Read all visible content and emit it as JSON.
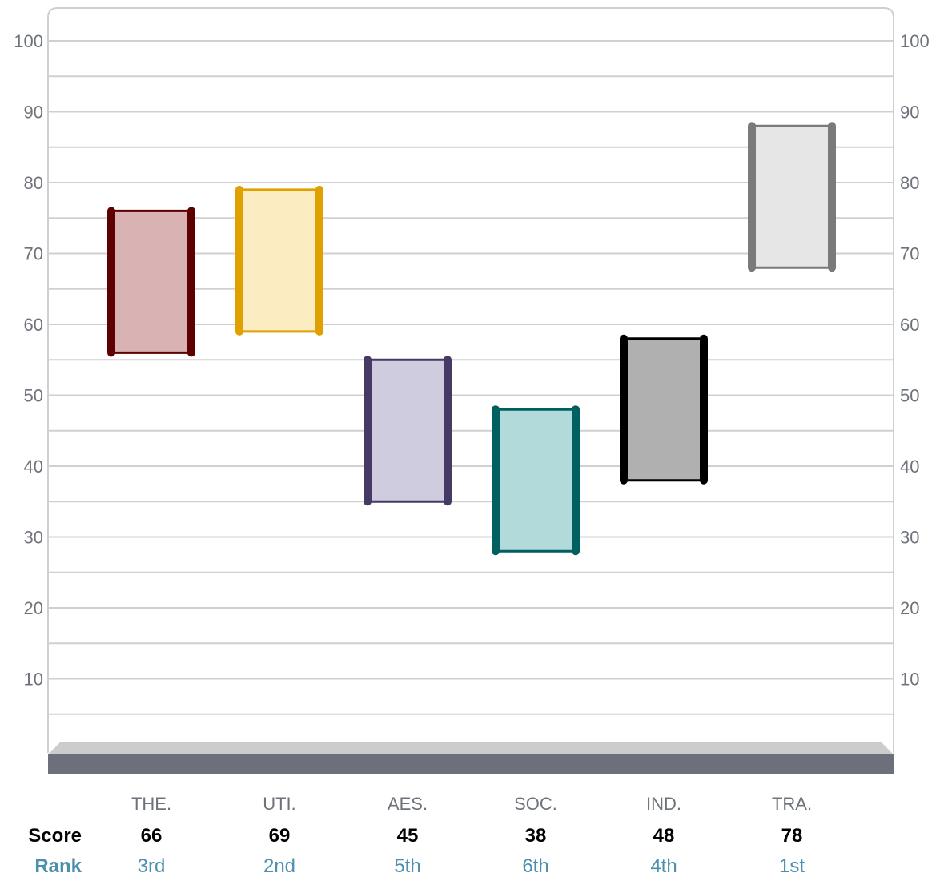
{
  "chart_data": {
    "type": "floating-bar",
    "title": "",
    "ylim": [
      0,
      100
    ],
    "y_ticks": [
      10,
      20,
      30,
      40,
      50,
      60,
      70,
      80,
      90,
      100
    ],
    "grid": true,
    "categories": [
      "THE.",
      "UTI.",
      "AES.",
      "SOC.",
      "IND.",
      "TRA."
    ],
    "ranges": [
      {
        "low": 56,
        "high": 76
      },
      {
        "low": 59,
        "high": 79
      },
      {
        "low": 35,
        "high": 55
      },
      {
        "low": 28,
        "high": 48
      },
      {
        "low": 38,
        "high": 58
      },
      {
        "low": 68,
        "high": 88
      }
    ],
    "colors": [
      {
        "stroke": "#5c0000",
        "fill": "#d9b3b3"
      },
      {
        "stroke": "#e0a000",
        "fill": "#fcecc2"
      },
      {
        "stroke": "#463a64",
        "fill": "#d0cce0"
      },
      {
        "stroke": "#006060",
        "fill": "#b2dada"
      },
      {
        "stroke": "#000000",
        "fill": "#b0b0b0"
      },
      {
        "stroke": "#7a7a7a",
        "fill": "#e6e6e6"
      }
    ]
  },
  "table": {
    "score_label": "Score",
    "rank_label": "Rank",
    "scores": [
      "66",
      "69",
      "45",
      "38",
      "48",
      "78"
    ],
    "ranks": [
      "3rd",
      "2nd",
      "5th",
      "6th",
      "4th",
      "1st"
    ]
  }
}
